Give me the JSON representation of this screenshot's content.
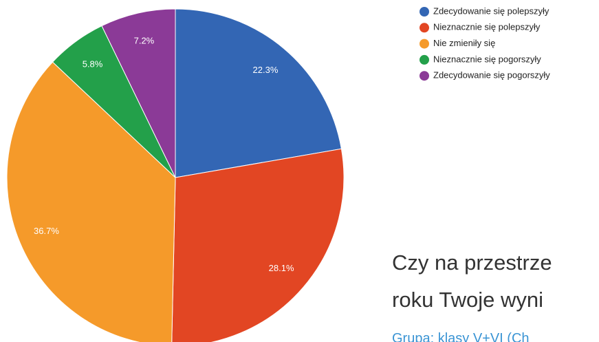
{
  "chart_data": {
    "type": "pie",
    "title": [
      "Czy na przestrze",
      "roku Twoje wyni"
    ],
    "subtitle": "Grupa: klasy V+VI (Ch",
    "categories": [
      "Zdecydowanie się polepszyły",
      "Nieznacznie się polepszyły",
      "Nie zmieniły się",
      "Nieznacznie się pogorszyły",
      "Zdecydowanie się pogorszyły"
    ],
    "values": [
      22.3,
      28.1,
      36.7,
      5.8,
      7.2
    ],
    "value_labels": [
      "22.3%",
      "28.1%",
      "36.7%",
      "5.8%",
      "7.2%"
    ],
    "colors": [
      "#3366b4",
      "#e24623",
      "#f59a2a",
      "#23a04a",
      "#8b3a97"
    ]
  }
}
